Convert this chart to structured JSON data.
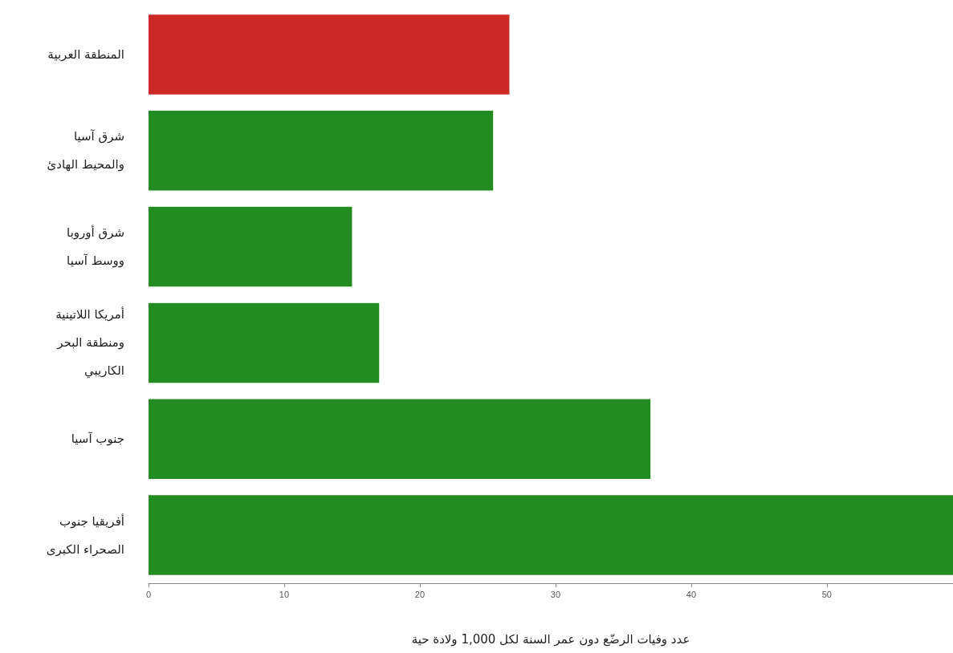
{
  "chart_data": {
    "type": "bar",
    "orientation": "horizontal",
    "categories": [
      "المنطقة العربية",
      "شرق آسيا\nوالمحيط الهادئ",
      "شرق أوروبا\nووسط آسيا",
      "أمريكا اللاتينية\nومنطقة البحر\nالكاريبي",
      "جنوب آسيا",
      "أفريقيا جنوب\nالصحراء الكبرى"
    ],
    "values": [
      26.6,
      25.4,
      15.0,
      17.0,
      37.0,
      59.3
    ],
    "colors": [
      "#cc2828",
      "#228b22",
      "#228b22",
      "#228b22",
      "#228b22",
      "#228b22"
    ],
    "xlabel": "عدد وفيات الرضّع دون عمر السنة لكل 1,000 ولادة حية",
    "xlim": [
      0,
      59.3
    ],
    "xticks": [
      0,
      10,
      20,
      30,
      40,
      50
    ],
    "grid": false
  }
}
